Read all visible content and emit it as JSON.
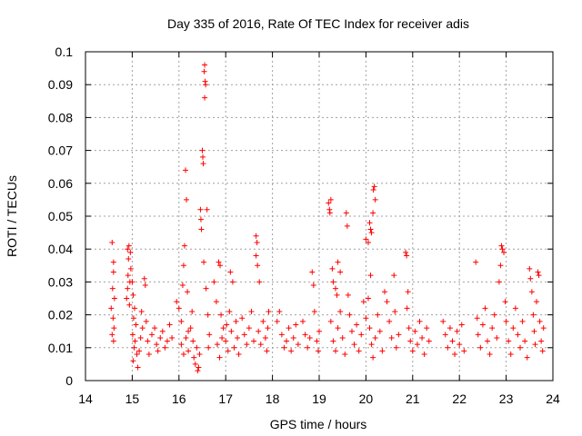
{
  "chart_data": {
    "type": "scatter",
    "title": "Day 335 of 2016, Rate Of TEC Index for receiver adis",
    "xlabel": "GPS time / hours",
    "ylabel": "ROTI / TECUs",
    "xlim": [
      14,
      24
    ],
    "ylim": [
      0,
      0.1
    ],
    "x_ticks": [
      "14",
      "15",
      "16",
      "17",
      "18",
      "19",
      "20",
      "21",
      "22",
      "23",
      "24"
    ],
    "y_ticks": [
      "0",
      "0.01",
      "0.02",
      "0.03",
      "0.04",
      "0.05",
      "0.06",
      "0.07",
      "0.08",
      "0.09",
      "0.1"
    ],
    "grid": true,
    "marker": "+",
    "series": [
      {
        "name": "ROTI",
        "color": "#ff0000",
        "points": [
          [
            14.57,
            0.042
          ],
          [
            14.6,
            0.036
          ],
          [
            14.6,
            0.033
          ],
          [
            14.58,
            0.028
          ],
          [
            14.62,
            0.025
          ],
          [
            14.55,
            0.022
          ],
          [
            14.59,
            0.019
          ],
          [
            14.61,
            0.016
          ],
          [
            14.57,
            0.014
          ],
          [
            14.6,
            0.012
          ],
          [
            14.9,
            0.04
          ],
          [
            14.93,
            0.041
          ],
          [
            14.96,
            0.039
          ],
          [
            14.92,
            0.037
          ],
          [
            14.97,
            0.034
          ],
          [
            14.91,
            0.032
          ],
          [
            14.95,
            0.03
          ],
          [
            14.9,
            0.028
          ],
          [
            14.88,
            0.025
          ],
          [
            14.94,
            0.023
          ],
          [
            15.0,
            0.03
          ],
          [
            15.02,
            0.026
          ],
          [
            15.05,
            0.022
          ],
          [
            15.03,
            0.019
          ],
          [
            15.08,
            0.017
          ],
          [
            15.01,
            0.014
          ],
          [
            15.06,
            0.012
          ],
          [
            15.04,
            0.01
          ],
          [
            15.1,
            0.008
          ],
          [
            15.02,
            0.006
          ],
          [
            15.12,
            0.004
          ],
          [
            15.15,
            0.009
          ],
          [
            15.18,
            0.013
          ],
          [
            15.22,
            0.016
          ],
          [
            15.2,
            0.021
          ],
          [
            15.26,
            0.031
          ],
          [
            15.28,
            0.029
          ],
          [
            15.3,
            0.018
          ],
          [
            15.33,
            0.012
          ],
          [
            15.36,
            0.008
          ],
          [
            15.42,
            0.014
          ],
          [
            15.48,
            0.016
          ],
          [
            15.52,
            0.011
          ],
          [
            15.55,
            0.009
          ],
          [
            15.6,
            0.013
          ],
          [
            15.65,
            0.015
          ],
          [
            15.7,
            0.01
          ],
          [
            15.75,
            0.012
          ],
          [
            15.8,
            0.017
          ],
          [
            15.85,
            0.013
          ],
          [
            15.95,
            0.024
          ],
          [
            16.0,
            0.022
          ],
          [
            16.05,
            0.018
          ],
          [
            16.08,
            0.029
          ],
          [
            16.1,
            0.035
          ],
          [
            16.12,
            0.041
          ],
          [
            16.14,
            0.064
          ],
          [
            16.16,
            0.055
          ],
          [
            16.18,
            0.027
          ],
          [
            16.2,
            0.015
          ],
          [
            16.05,
            0.011
          ],
          [
            16.1,
            0.008
          ],
          [
            16.15,
            0.013
          ],
          [
            16.2,
            0.009
          ],
          [
            16.25,
            0.016
          ],
          [
            16.28,
            0.021
          ],
          [
            16.3,
            0.012
          ],
          [
            16.32,
            0.007
          ],
          [
            16.35,
            0.005
          ],
          [
            16.38,
            0.01
          ],
          [
            16.4,
            0.003
          ],
          [
            16.42,
            0.004
          ],
          [
            16.44,
            0.008
          ],
          [
            16.46,
            0.052
          ],
          [
            16.47,
            0.049
          ],
          [
            16.48,
            0.046
          ],
          [
            16.5,
            0.07
          ],
          [
            16.51,
            0.068
          ],
          [
            16.52,
            0.066
          ],
          [
            16.53,
            0.036
          ],
          [
            16.55,
            0.096
          ],
          [
            16.54,
            0.094
          ],
          [
            16.56,
            0.091
          ],
          [
            16.57,
            0.09
          ],
          [
            16.55,
            0.086
          ],
          [
            16.6,
            0.052
          ],
          [
            16.58,
            0.028
          ],
          [
            16.62,
            0.02
          ],
          [
            16.65,
            0.014
          ],
          [
            16.63,
            0.01
          ],
          [
            16.75,
            0.03
          ],
          [
            16.8,
            0.024
          ],
          [
            16.85,
            0.036
          ],
          [
            16.88,
            0.035
          ],
          [
            16.9,
            0.02
          ],
          [
            16.95,
            0.016
          ],
          [
            17.0,
            0.012
          ],
          [
            17.05,
            0.009
          ],
          [
            17.1,
            0.033
          ],
          [
            17.15,
            0.03
          ],
          [
            16.82,
            0.011
          ],
          [
            16.87,
            0.007
          ],
          [
            16.92,
            0.013
          ],
          [
            17.02,
            0.017
          ],
          [
            17.08,
            0.021
          ],
          [
            17.12,
            0.015
          ],
          [
            17.18,
            0.01
          ],
          [
            17.22,
            0.018
          ],
          [
            17.25,
            0.013
          ],
          [
            17.28,
            0.008
          ],
          [
            17.35,
            0.019
          ],
          [
            17.4,
            0.014
          ],
          [
            17.45,
            0.011
          ],
          [
            17.5,
            0.016
          ],
          [
            17.55,
            0.021
          ],
          [
            17.6,
            0.012
          ],
          [
            17.65,
            0.044
          ],
          [
            17.67,
            0.042
          ],
          [
            17.65,
            0.038
          ],
          [
            17.68,
            0.035
          ],
          [
            17.72,
            0.03
          ],
          [
            17.7,
            0.015
          ],
          [
            17.75,
            0.011
          ],
          [
            17.8,
            0.018
          ],
          [
            17.85,
            0.013
          ],
          [
            17.88,
            0.009
          ],
          [
            17.9,
            0.016
          ],
          [
            17.92,
            0.021
          ],
          [
            18.1,
            0.018
          ],
          [
            18.15,
            0.021
          ],
          [
            18.2,
            0.014
          ],
          [
            18.25,
            0.01
          ],
          [
            18.3,
            0.012
          ],
          [
            18.35,
            0.016
          ],
          [
            18.4,
            0.009
          ],
          [
            18.45,
            0.013
          ],
          [
            18.5,
            0.017
          ],
          [
            18.55,
            0.011
          ],
          [
            18.65,
            0.018
          ],
          [
            18.7,
            0.014
          ],
          [
            18.75,
            0.01
          ],
          [
            18.8,
            0.013
          ],
          [
            18.85,
            0.033
          ],
          [
            18.88,
            0.029
          ],
          [
            18.9,
            0.021
          ],
          [
            18.95,
            0.012
          ],
          [
            18.98,
            0.009
          ],
          [
            19.0,
            0.015
          ],
          [
            19.2,
            0.054
          ],
          [
            19.22,
            0.052
          ],
          [
            19.25,
            0.055
          ],
          [
            19.23,
            0.051
          ],
          [
            19.28,
            0.034
          ],
          [
            19.3,
            0.03
          ],
          [
            19.35,
            0.028
          ],
          [
            19.4,
            0.036
          ],
          [
            19.45,
            0.033
          ],
          [
            19.38,
            0.026
          ],
          [
            19.25,
            0.018
          ],
          [
            19.3,
            0.012
          ],
          [
            19.35,
            0.009
          ],
          [
            19.4,
            0.016
          ],
          [
            19.45,
            0.021
          ],
          [
            19.5,
            0.013
          ],
          [
            19.55,
            0.008
          ],
          [
            19.58,
            0.051
          ],
          [
            19.6,
            0.047
          ],
          [
            19.62,
            0.026
          ],
          [
            19.65,
            0.02
          ],
          [
            19.7,
            0.015
          ],
          [
            19.75,
            0.011
          ],
          [
            19.8,
            0.017
          ],
          [
            19.85,
            0.009
          ],
          [
            19.9,
            0.014
          ],
          [
            19.95,
            0.024
          ],
          [
            20.0,
            0.019
          ],
          [
            20.0,
            0.043
          ],
          [
            20.05,
            0.042
          ],
          [
            20.08,
            0.048
          ],
          [
            20.1,
            0.046
          ],
          [
            20.12,
            0.045
          ],
          [
            20.15,
            0.051
          ],
          [
            20.16,
            0.058
          ],
          [
            20.18,
            0.059
          ],
          [
            20.2,
            0.055
          ],
          [
            20.1,
            0.032
          ],
          [
            20.05,
            0.025
          ],
          [
            20.08,
            0.016
          ],
          [
            20.12,
            0.011
          ],
          [
            20.15,
            0.007
          ],
          [
            20.2,
            0.013
          ],
          [
            20.25,
            0.02
          ],
          [
            20.3,
            0.015
          ],
          [
            20.35,
            0.009
          ],
          [
            20.4,
            0.027
          ],
          [
            20.45,
            0.024
          ],
          [
            20.5,
            0.018
          ],
          [
            20.55,
            0.013
          ],
          [
            20.6,
            0.032
          ],
          [
            20.62,
            0.021
          ],
          [
            20.65,
            0.01
          ],
          [
            20.7,
            0.014
          ],
          [
            20.85,
            0.039
          ],
          [
            20.87,
            0.038
          ],
          [
            20.9,
            0.027
          ],
          [
            20.88,
            0.022
          ],
          [
            20.92,
            0.016
          ],
          [
            20.95,
            0.012
          ],
          [
            21.0,
            0.009
          ],
          [
            21.05,
            0.015
          ],
          [
            21.1,
            0.011
          ],
          [
            21.15,
            0.018
          ],
          [
            21.2,
            0.013
          ],
          [
            21.25,
            0.008
          ],
          [
            21.3,
            0.016
          ],
          [
            21.35,
            0.012
          ],
          [
            21.65,
            0.018
          ],
          [
            21.7,
            0.014
          ],
          [
            21.75,
            0.01
          ],
          [
            21.8,
            0.016
          ],
          [
            21.85,
            0.012
          ],
          [
            21.9,
            0.008
          ],
          [
            21.95,
            0.015
          ],
          [
            22.0,
            0.011
          ],
          [
            22.05,
            0.017
          ],
          [
            22.1,
            0.009
          ],
          [
            22.35,
            0.036
          ],
          [
            22.38,
            0.019
          ],
          [
            22.4,
            0.014
          ],
          [
            22.45,
            0.01
          ],
          [
            22.5,
            0.017
          ],
          [
            22.55,
            0.022
          ],
          [
            22.6,
            0.012
          ],
          [
            22.65,
            0.008
          ],
          [
            22.7,
            0.016
          ],
          [
            22.75,
            0.02
          ],
          [
            22.8,
            0.013
          ],
          [
            22.85,
            0.03
          ],
          [
            22.88,
            0.035
          ],
          [
            22.9,
            0.041
          ],
          [
            22.92,
            0.04
          ],
          [
            22.95,
            0.039
          ],
          [
            22.98,
            0.024
          ],
          [
            23.0,
            0.018
          ],
          [
            23.05,
            0.012
          ],
          [
            23.1,
            0.008
          ],
          [
            23.15,
            0.016
          ],
          [
            23.2,
            0.022
          ],
          [
            23.25,
            0.014
          ],
          [
            23.3,
            0.01
          ],
          [
            23.35,
            0.018
          ],
          [
            23.4,
            0.012
          ],
          [
            23.45,
            0.007
          ],
          [
            23.5,
            0.034
          ],
          [
            23.52,
            0.031
          ],
          [
            23.55,
            0.027
          ],
          [
            23.58,
            0.02
          ],
          [
            23.6,
            0.015
          ],
          [
            23.62,
            0.011
          ],
          [
            23.65,
            0.024
          ],
          [
            23.68,
            0.033
          ],
          [
            23.7,
            0.032
          ],
          [
            23.72,
            0.018
          ],
          [
            23.75,
            0.012
          ],
          [
            23.78,
            0.009
          ],
          [
            23.8,
            0.016
          ]
        ]
      }
    ]
  }
}
